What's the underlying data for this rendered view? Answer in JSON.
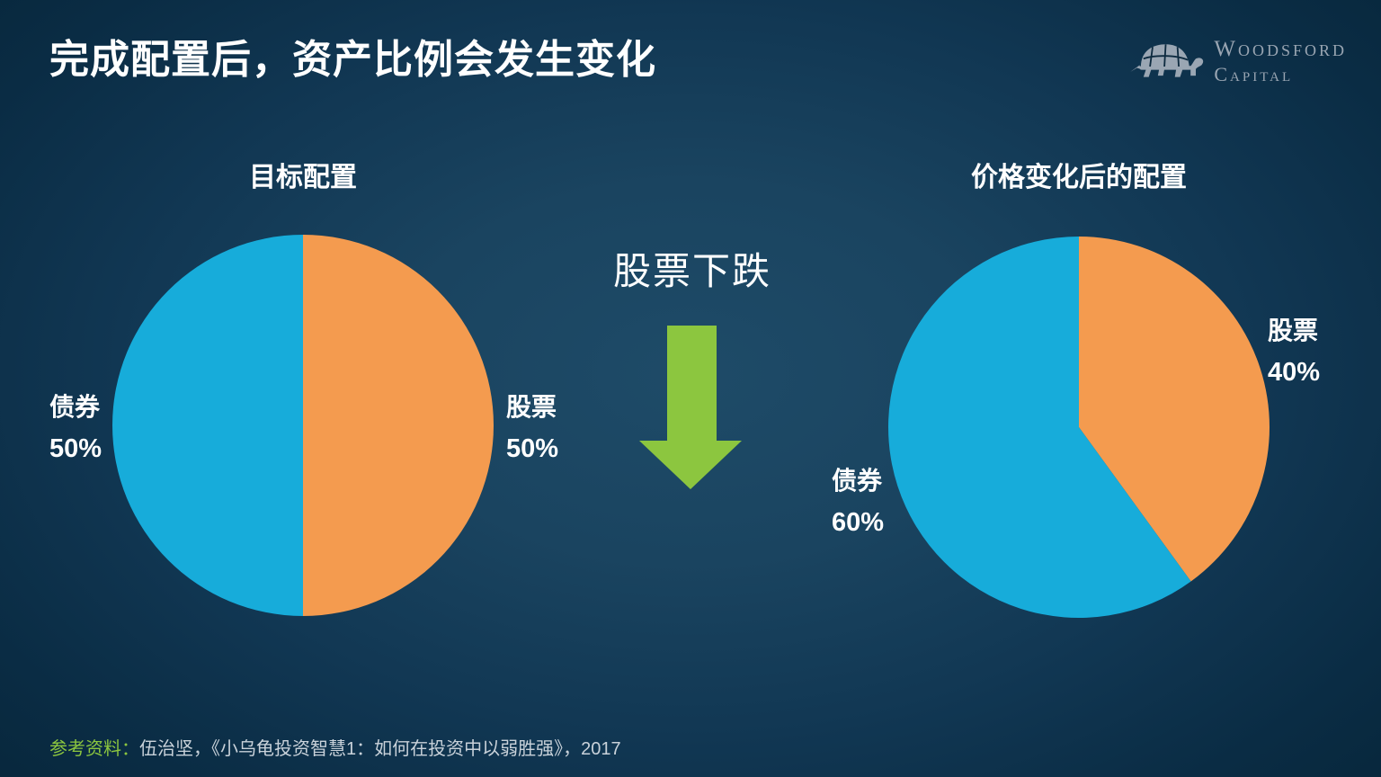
{
  "slide_title": "完成配置后，资产比例会发生变化",
  "logo": {
    "line1": "Woodsford",
    "line2": "Capital",
    "icon": "turtle-icon",
    "text_color": "#99a5b2"
  },
  "center_annotation": {
    "label": "股票下跌",
    "arrow_direction": "down"
  },
  "footnote": {
    "prefix": "参考资料：",
    "text": "伍治坚，《小乌龟投资智慧1：如何在投资中以弱胜强》，2017"
  },
  "colors": {
    "bonds_blue": "#17acda",
    "stocks_orange": "#f49b4f",
    "accent_green": "#8cc63f",
    "background_center": "#1e4b68",
    "background_edge": "#07263a",
    "text_white": "#ffffff",
    "footnote_gray": "#c9d2da"
  },
  "chart_data": [
    {
      "type": "pie",
      "title": "目标配置",
      "start_angle": 0,
      "direction": "clockwise-from-top",
      "slices": [
        {
          "label": "股票",
          "value": 50,
          "color": "#f49b4f"
        },
        {
          "label": "债券",
          "value": 50,
          "color": "#17acda"
        }
      ],
      "labels": [
        {
          "text": "债券",
          "pct": "50%",
          "side": "left"
        },
        {
          "text": "股票",
          "pct": "50%",
          "side": "right"
        }
      ]
    },
    {
      "type": "pie",
      "title": "价格变化后的配置",
      "start_angle": 0,
      "direction": "clockwise-from-top",
      "slices": [
        {
          "label": "股票",
          "value": 40,
          "color": "#f49b4f"
        },
        {
          "label": "债券",
          "value": 60,
          "color": "#17acda"
        }
      ],
      "labels": [
        {
          "text": "股票",
          "pct": "40%",
          "side": "right"
        },
        {
          "text": "债券",
          "pct": "60%",
          "side": "left"
        }
      ]
    }
  ]
}
